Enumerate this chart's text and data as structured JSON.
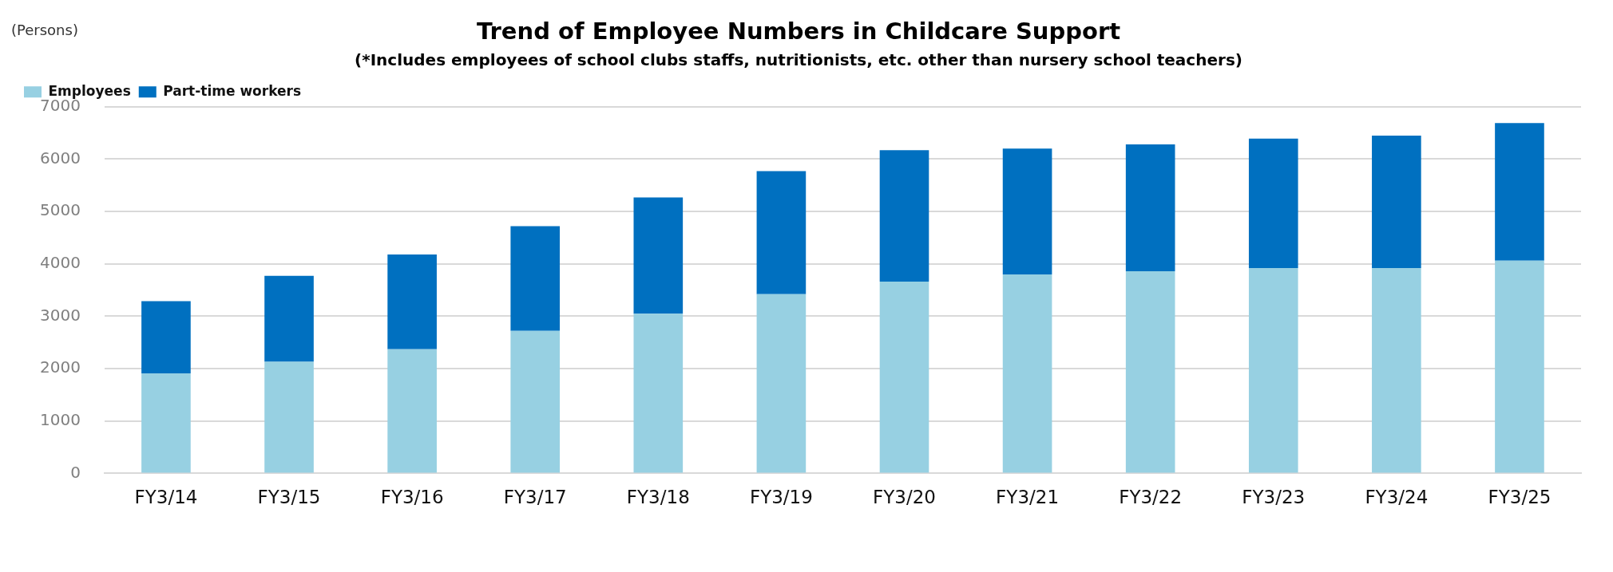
{
  "chart_data": {
    "type": "bar",
    "title": "Trend of Employee Numbers in Childcare Support",
    "subtitle": "(*Includes employees of school clubs staffs, nutritionists, etc. other than nursery school teachers)",
    "ylabel": "(Persons)",
    "categories": [
      "FY3/14",
      "FY3/15",
      "FY3/16",
      "FY3/17",
      "FY3/18",
      "FY3/19",
      "FY3/20",
      "FY3/21",
      "FY3/22",
      "FY3/23",
      "FY3/24",
      "FY3/25"
    ],
    "stacked": true,
    "series": [
      {
        "name": "Employees",
        "color": "#97d0e2",
        "values": [
          1910,
          2130,
          2370,
          2720,
          3050,
          3420,
          3660,
          3800,
          3860,
          3920,
          3920,
          4060
        ]
      },
      {
        "name": "Part-time workers",
        "color": "#0070c0",
        "values": [
          1380,
          1640,
          1810,
          2000,
          2220,
          2350,
          2510,
          2400,
          2420,
          2470,
          2530,
          2630
        ]
      }
    ],
    "ylim": [
      0,
      7000
    ],
    "yticks": [
      0,
      1000,
      2000,
      3000,
      4000,
      5000,
      6000,
      7000
    ],
    "grid": "y",
    "legend": "top left"
  }
}
